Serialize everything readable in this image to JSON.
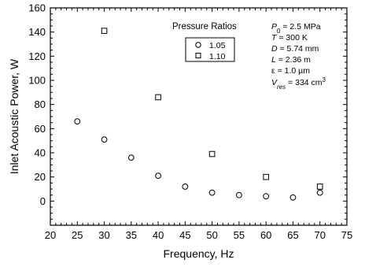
{
  "chart_data": {
    "type": "scatter",
    "xlabel": "Frequency, Hz",
    "ylabel": "Inlet Acoustic Power, W",
    "xlim": [
      20,
      75
    ],
    "ylim": [
      -20,
      160
    ],
    "x_ticks": [
      20,
      25,
      30,
      35,
      40,
      45,
      50,
      55,
      60,
      65,
      70,
      75
    ],
    "y_ticks": [
      0,
      20,
      40,
      60,
      80,
      100,
      120,
      140,
      160
    ],
    "y_tick_labels": [
      "0",
      "20",
      "40",
      "60",
      "80",
      "100",
      "120",
      "140",
      "160"
    ],
    "grid": false,
    "legend": {
      "title": "Pressure Ratios",
      "placement": "top-center",
      "entries": [
        "1.05",
        "1.10"
      ]
    },
    "series": [
      {
        "name": "1.05",
        "marker": "circle",
        "x": [
          25,
          30,
          35,
          40,
          45,
          50,
          55,
          60,
          65,
          70
        ],
        "y": [
          66,
          51,
          36,
          21,
          12,
          7,
          5,
          4,
          3,
          7
        ]
      },
      {
        "name": "1.10",
        "marker": "square",
        "x": [
          30,
          40,
          50,
          60,
          70
        ],
        "y": [
          141,
          86,
          39,
          20,
          12
        ]
      }
    ],
    "annotations": {
      "P0": {
        "symbol": "P",
        "sub": "0",
        "text": " = 2.5 MPa"
      },
      "T": {
        "symbol": "T",
        "text": " = 300 K"
      },
      "D": {
        "symbol": "D",
        "text": " = 5.74 mm"
      },
      "L": {
        "symbol": "L",
        "text": " = 2.36 m"
      },
      "eps": {
        "symbol": "ε",
        "text": " = 1.0 µm"
      },
      "Vres": {
        "symbol": "V",
        "sub": "res",
        "text": " = 334 cm",
        "sup": "3"
      }
    }
  }
}
